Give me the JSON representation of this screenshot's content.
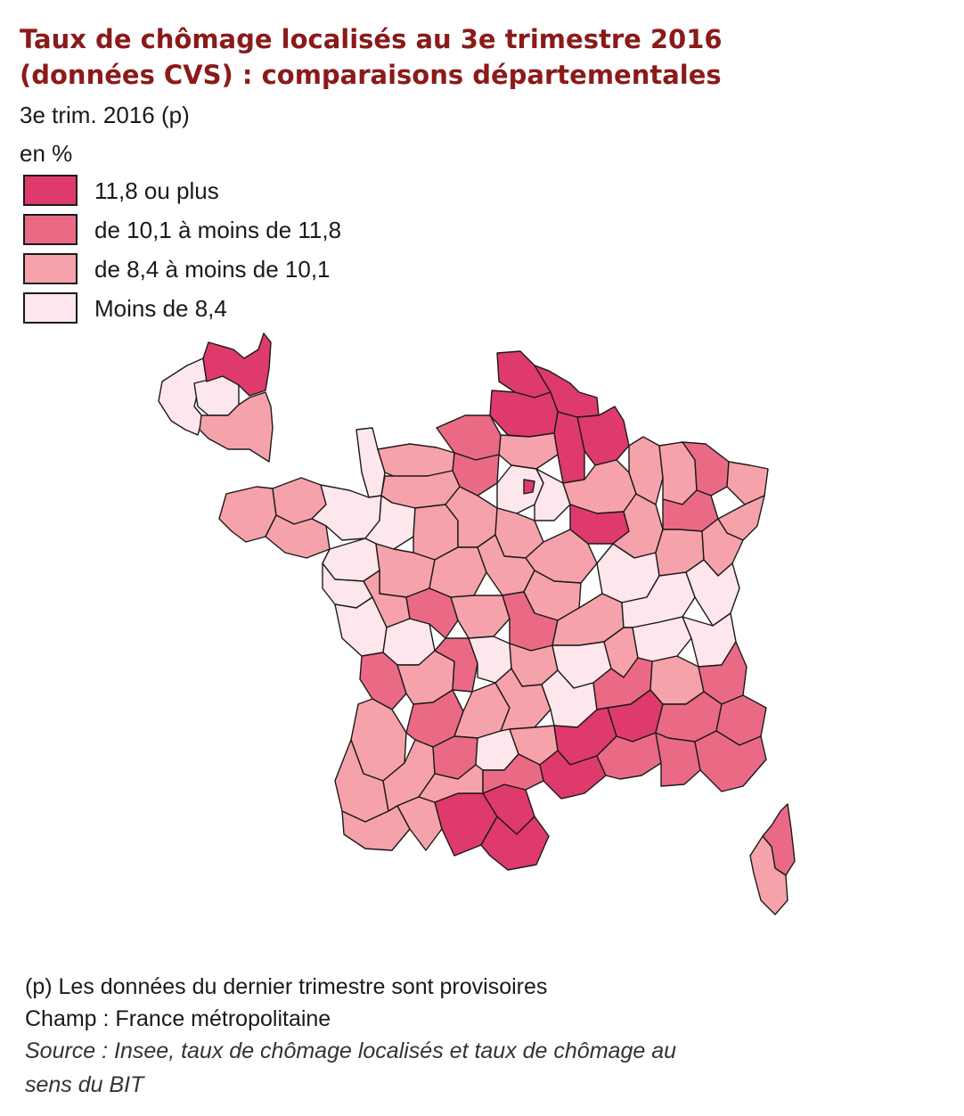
{
  "header": {
    "title_line1": "Taux de chômage localisés au 3e trimestre 2016",
    "title_line2": "(données CVS) : comparaisons départementales",
    "subtitle": "3e trim. 2016 (p)",
    "unit": "en %"
  },
  "legend": {
    "items": [
      {
        "label": "11,8 ou plus",
        "color": "#de3a6c"
      },
      {
        "label": "de 10,1 à moins de 11,8",
        "color": "#ea6a86"
      },
      {
        "label": "de 8,4 à moins de 10,1",
        "color": "#f6a2ab"
      },
      {
        "label": "Moins de 8,4",
        "color": "#fde6ec"
      }
    ]
  },
  "map": {
    "border_color": "#1a1a1a",
    "region_border_color": "#000000"
  },
  "footer": {
    "note": "(p) Les données du dernier trimestre sont provisoires",
    "scope": "Champ : France métropolitaine",
    "source_line1": "Source : Insee, taux de chômage localisés et taux de chômage au",
    "source_line2": "sens du BIT"
  }
}
